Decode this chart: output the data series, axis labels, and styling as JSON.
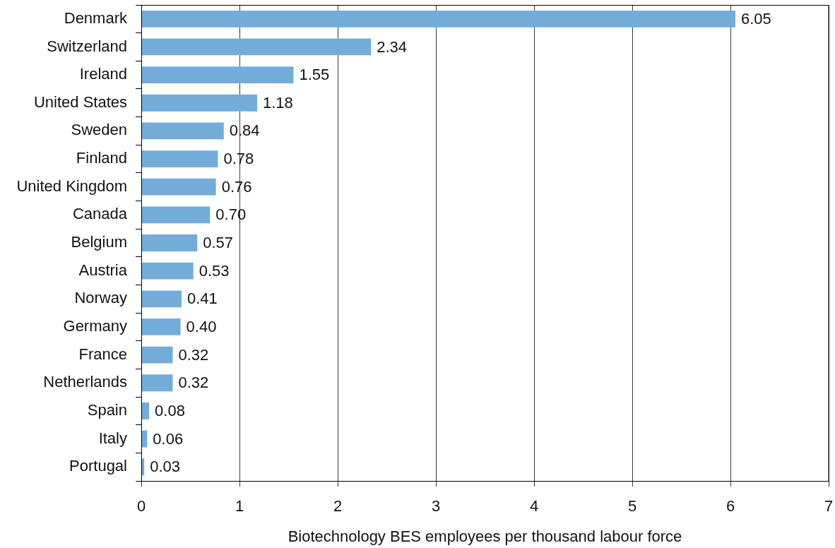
{
  "chart_data": {
    "type": "bar",
    "orientation": "horizontal",
    "xlabel": "Biotechnology BES employees per thousand labour force",
    "categories": [
      "Denmark",
      "Switzerland",
      "Ireland",
      "United States",
      "Sweden",
      "Finland",
      "United Kingdom",
      "Canada",
      "Belgium",
      "Austria",
      "Norway",
      "Germany",
      "France",
      "Netherlands",
      "Spain",
      "Italy",
      "Portugal"
    ],
    "values": [
      6.05,
      2.34,
      1.55,
      1.18,
      0.84,
      0.78,
      0.76,
      0.7,
      0.57,
      0.53,
      0.41,
      0.4,
      0.32,
      0.32,
      0.08,
      0.06,
      0.03
    ],
    "value_labels": [
      "6.05",
      "2.34",
      "1.55",
      "1.18",
      "0.84",
      "0.78",
      "0.76",
      "0.70",
      "0.57",
      "0.53",
      "0.41",
      "0.40",
      "0.32",
      "0.32",
      "0.08",
      "0.06",
      "0.03"
    ],
    "color": "#74acd9",
    "xlim": [
      0,
      7
    ],
    "xticks": [
      0,
      1,
      2,
      3,
      4,
      5,
      6,
      7
    ],
    "grid": "x"
  }
}
